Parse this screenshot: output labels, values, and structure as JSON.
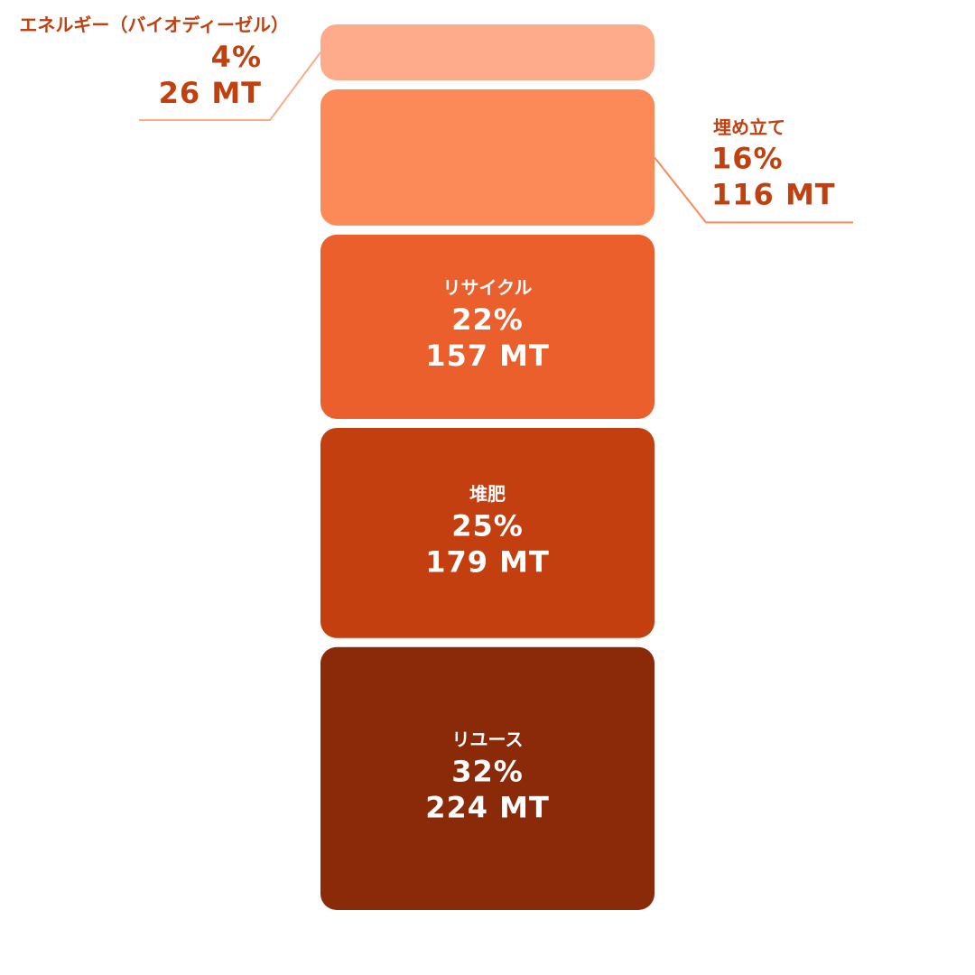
{
  "chart_data": {
    "type": "stacked-block",
    "segments": [
      {
        "name": "エネルギー（バイオディーゼル）",
        "color": "#fdab8a",
        "percent": 4,
        "percent_label": "4%",
        "amount": 26,
        "amount_label": "26 MT"
      },
      {
        "name": "埋め立て",
        "color": "#fb8a58",
        "percent": 16,
        "percent_label": "16%",
        "amount": 116,
        "amount_label": "116 MT"
      },
      {
        "name": "リサイクル",
        "color": "#eb5f2d",
        "percent": 22,
        "percent_label": "22%",
        "amount": 157,
        "amount_label": "157 MT"
      },
      {
        "name": "堆肥",
        "color": "#c43f10",
        "percent": 25,
        "percent_label": "25%",
        "amount": 179,
        "amount_label": "179 MT"
      },
      {
        "name": "リユース",
        "color": "#8b2a08",
        "percent": 32,
        "percent_label": "32%",
        "amount": 224,
        "amount_label": "224 MT"
      }
    ]
  }
}
